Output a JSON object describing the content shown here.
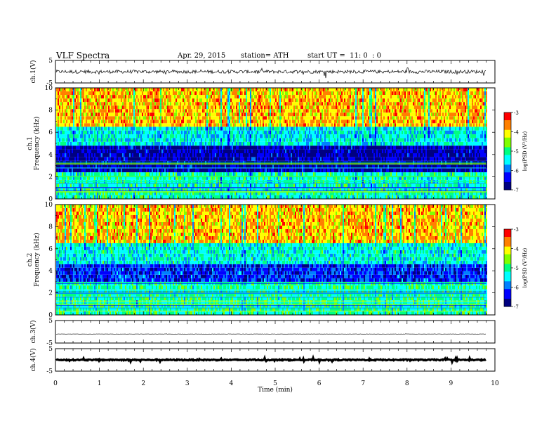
{
  "header": {
    "title": "VLF Spectra",
    "date": "Apr. 29, 2015",
    "station": "station= ATH",
    "start": "start UT =  11: 0  : 0"
  },
  "colors": {
    "colormap": [
      "#000080",
      "#0000ff",
      "#0080ff",
      "#00ffff",
      "#00ff80",
      "#80ff00",
      "#ffff00",
      "#ff8000",
      "#ff0000",
      "#ff80ff"
    ]
  },
  "chart_data": [
    {
      "type": "line",
      "id": "ch1-waveform",
      "ylabel": "ch.1(V)",
      "ylim": [
        -5,
        5
      ],
      "yticks": [
        "5",
        "-5"
      ],
      "baseline": 0,
      "amplitude": 1.5
    },
    {
      "type": "heatmap",
      "id": "ch1-spectrogram",
      "ylabel": "ch.1\nFrequency (kHz)",
      "ylim": [
        0,
        10
      ],
      "yticks": [
        "0",
        "2",
        "4",
        "6",
        "8",
        "10"
      ],
      "colorbar": {
        "label": "log(PSD (V²/Hz)",
        "range": [
          -7,
          -3
        ],
        "ticks": [
          "-3",
          "-4",
          "-5",
          "-6",
          "-7"
        ]
      },
      "bands_khz": [
        {
          "from": 0,
          "to": 2.4,
          "level": -5.2
        },
        {
          "from": 2.4,
          "to": 4.8,
          "level": -6.6
        },
        {
          "from": 4.8,
          "to": 6.5,
          "level": -5.4
        },
        {
          "from": 6.5,
          "to": 10,
          "level": -3.9
        }
      ]
    },
    {
      "type": "heatmap",
      "id": "ch2-spectrogram",
      "ylabel": "ch.2\nFrequency (kHz)",
      "ylim": [
        0,
        10
      ],
      "yticks": [
        "0",
        "2",
        "4",
        "6",
        "8",
        "10"
      ],
      "colorbar": {
        "label": "log(PSD (V²/Hz)",
        "range": [
          -7,
          -3
        ],
        "ticks": [
          "-3",
          "-4",
          "-5",
          "-6",
          "-7"
        ]
      },
      "bands_khz": [
        {
          "from": 0,
          "to": 3,
          "level": -5.1
        },
        {
          "from": 3,
          "to": 4.6,
          "level": -6.2
        },
        {
          "from": 4.6,
          "to": 6.5,
          "level": -5.3
        },
        {
          "from": 6.5,
          "to": 10,
          "level": -3.9
        }
      ]
    },
    {
      "type": "line",
      "id": "ch3-waveform",
      "ylabel": "ch.3(V)",
      "ylim": [
        -5,
        5
      ],
      "yticks": [
        "5",
        "-5"
      ],
      "baseline": -1,
      "amplitude": 0.1
    },
    {
      "type": "line",
      "id": "ch4-waveform",
      "ylabel": "ch.4(V)",
      "ylim": [
        -5,
        5
      ],
      "yticks": [
        "5",
        "-5"
      ],
      "baseline": 0,
      "amplitude": 0.5
    }
  ],
  "xaxis": {
    "label": "Time (min)",
    "xlim": [
      0,
      10
    ],
    "data_end": 9.8,
    "ticks": [
      "0",
      "1",
      "2",
      "3",
      "4",
      "5",
      "6",
      "7",
      "8",
      "9",
      "10"
    ]
  }
}
